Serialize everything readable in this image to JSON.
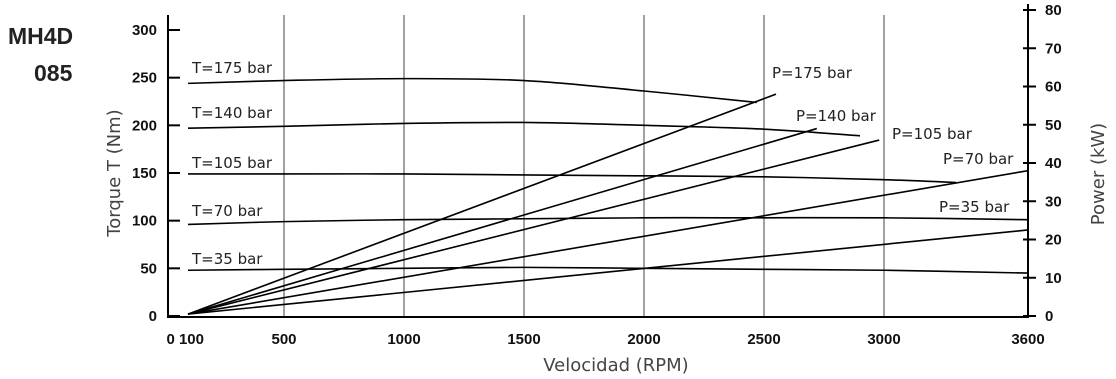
{
  "model": {
    "line1": "MH4D",
    "line2": "085"
  },
  "chart_data": {
    "type": "line",
    "xlabel": "Velocidad  (RPM)",
    "ylabel": "Torque T (Nm)",
    "y2label": "Power (kW)",
    "xlim": [
      100,
      3600
    ],
    "ylim": [
      0,
      300
    ],
    "y2lim": [
      0,
      80
    ],
    "x_ticks": [
      {
        "value": 100,
        "label": "0 100"
      },
      {
        "value": 500,
        "label": "500"
      },
      {
        "value": 1000,
        "label": "1000"
      },
      {
        "value": 1500,
        "label": "1500"
      },
      {
        "value": 2000,
        "label": "2000"
      },
      {
        "value": 2500,
        "label": "2500"
      },
      {
        "value": 3000,
        "label": "3000"
      },
      {
        "value": 3600,
        "label": "3600"
      }
    ],
    "y_ticks": [
      0,
      50,
      100,
      150,
      200,
      250,
      300
    ],
    "y2_ticks": [
      0,
      10,
      20,
      30,
      40,
      50,
      60,
      70,
      80
    ],
    "torque_series": [
      {
        "name": "T=175 bar",
        "points": [
          [
            100,
            244
          ],
          [
            500,
            247
          ],
          [
            1000,
            249
          ],
          [
            1500,
            247
          ],
          [
            2000,
            236
          ],
          [
            2470,
            224
          ]
        ]
      },
      {
        "name": "T=140 bar",
        "points": [
          [
            100,
            197
          ],
          [
            500,
            199
          ],
          [
            1000,
            202
          ],
          [
            1500,
            203
          ],
          [
            2000,
            200
          ],
          [
            2500,
            196
          ],
          [
            2900,
            189
          ]
        ]
      },
      {
        "name": "T=105 bar",
        "points": [
          [
            100,
            149
          ],
          [
            500,
            149
          ],
          [
            1000,
            149
          ],
          [
            1500,
            148
          ],
          [
            2000,
            147
          ],
          [
            2500,
            146
          ],
          [
            3000,
            143
          ],
          [
            3300,
            140
          ]
        ]
      },
      {
        "name": "T=70 bar",
        "points": [
          [
            100,
            96
          ],
          [
            500,
            99
          ],
          [
            1000,
            101
          ],
          [
            1500,
            102
          ],
          [
            2000,
            103
          ],
          [
            2500,
            103
          ],
          [
            3000,
            103
          ],
          [
            3600,
            101
          ]
        ]
      },
      {
        "name": "T=35 bar",
        "points": [
          [
            100,
            48
          ],
          [
            500,
            49
          ],
          [
            1000,
            50
          ],
          [
            1500,
            51
          ],
          [
            2000,
            50
          ],
          [
            2500,
            49
          ],
          [
            3000,
            48
          ],
          [
            3600,
            45
          ]
        ]
      }
    ],
    "power_series": [
      {
        "name": "P=175 bar",
        "points": [
          [
            100,
            0.5
          ],
          [
            2550,
            58
          ]
        ]
      },
      {
        "name": "P=140 bar",
        "points": [
          [
            100,
            0.5
          ],
          [
            2720,
            49
          ]
        ]
      },
      {
        "name": "P=105 bar",
        "points": [
          [
            100,
            0.5
          ],
          [
            2980,
            46
          ]
        ]
      },
      {
        "name": "P=70 bar",
        "points": [
          [
            100,
            0.5
          ],
          [
            3600,
            38
          ]
        ]
      },
      {
        "name": "P=35 bar",
        "points": [
          [
            100,
            0.5
          ],
          [
            3600,
            22.5
          ]
        ]
      }
    ]
  }
}
